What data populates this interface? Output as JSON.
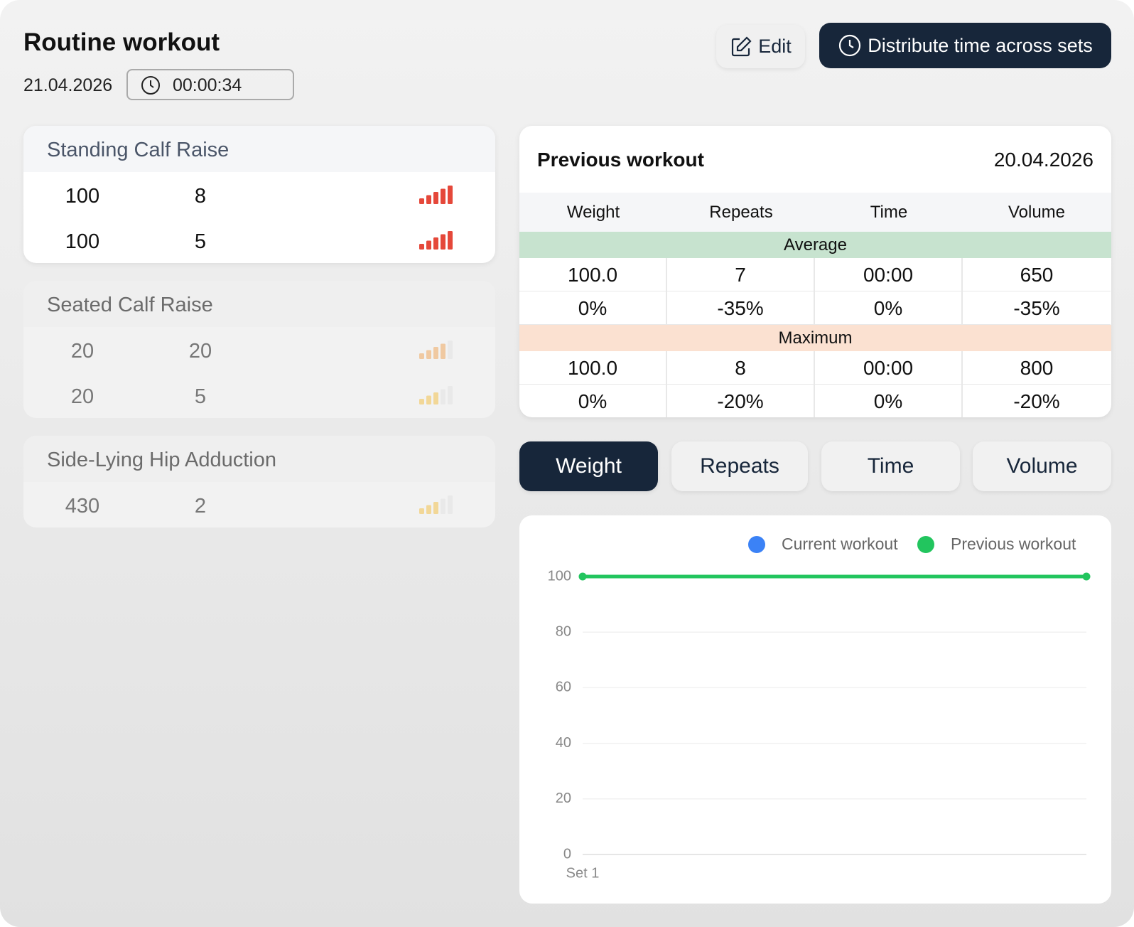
{
  "header": {
    "title": "Routine workout",
    "date": "21.04.2026",
    "timer": "00:00:34",
    "edit": "Edit",
    "distribute": "Distribute time across sets"
  },
  "exercises": [
    {
      "name": "Standing Calf Raise",
      "active": true,
      "sets": [
        {
          "weight": "100",
          "repeats": "8",
          "level": 5,
          "color": "#e5483a"
        },
        {
          "weight": "100",
          "repeats": "5",
          "level": 5,
          "color": "#e5483a"
        }
      ]
    },
    {
      "name": "Seated Calf Raise",
      "active": false,
      "sets": [
        {
          "weight": "20",
          "repeats": "20",
          "level": 4,
          "color": "#f0a860"
        },
        {
          "weight": "20",
          "repeats": "5",
          "level": 3,
          "color": "#f2c24e"
        }
      ]
    },
    {
      "name": "Side-Lying Hip Adduction",
      "active": false,
      "sets": [
        {
          "weight": "430",
          "repeats": "2",
          "level": 3,
          "color": "#f2c24e"
        }
      ]
    }
  ],
  "previous": {
    "title": "Previous workout",
    "date": "20.04.2026",
    "columns": [
      "Weight",
      "Repeats",
      "Time",
      "Volume"
    ],
    "sections": [
      {
        "name": "Average",
        "color": "#c7e3cf",
        "rows": [
          [
            "100.0",
            "7",
            "00:00",
            "650"
          ],
          [
            "0%",
            "-35%",
            "0%",
            "-35%"
          ]
        ]
      },
      {
        "name": "Maximum",
        "color": "#fbe1d1",
        "rows": [
          [
            "100.0",
            "8",
            "00:00",
            "800"
          ],
          [
            "0%",
            "-20%",
            "0%",
            "-20%"
          ]
        ]
      }
    ]
  },
  "tabs": {
    "items": [
      "Weight",
      "Repeats",
      "Time",
      "Volume"
    ],
    "active": 0
  },
  "chart_data": {
    "type": "line",
    "categories": [
      "Set 1",
      null
    ],
    "series": [
      {
        "name": "Current workout",
        "color": "#3b82f6",
        "values": [
          null,
          null
        ]
      },
      {
        "name": "Previous workout",
        "color": "#22c55e",
        "values": [
          100,
          100
        ]
      }
    ],
    "ylim": [
      0,
      100
    ],
    "yticks": [
      0,
      20,
      40,
      60,
      80,
      100
    ],
    "grid": true
  }
}
